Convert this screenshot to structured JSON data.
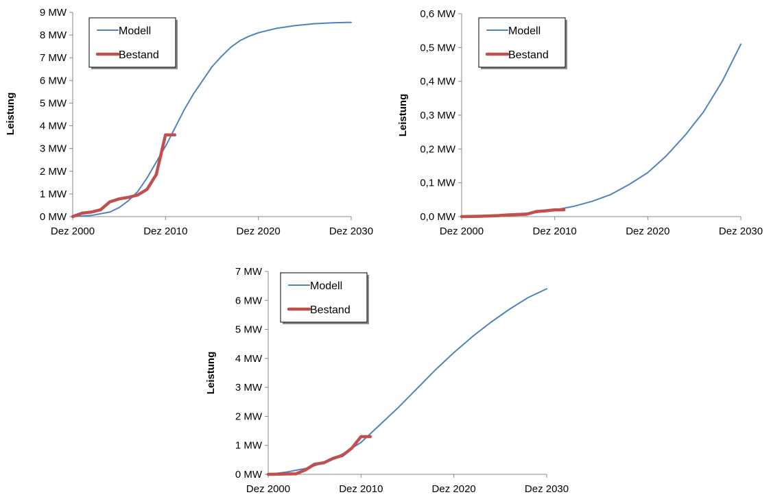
{
  "chart_data": [
    {
      "type": "line",
      "ylabel": "Leistung",
      "xlabel": "",
      "x_ticks": [
        "Dez 2000",
        "Dez 2010",
        "Dez 2020",
        "Dez 2030"
      ],
      "xlim": [
        2000,
        2030
      ],
      "y_ticks": [
        "0 MW",
        "1 MW",
        "2 MW",
        "3 MW",
        "4 MW",
        "5 MW",
        "6 MW",
        "7 MW",
        "8 MW",
        "9 MW"
      ],
      "ylim": [
        0,
        9
      ],
      "legend_position": "top-left",
      "series": [
        {
          "name": "Modell",
          "color": "#4f81bd",
          "x": [
            2000,
            2002,
            2004,
            2005,
            2006,
            2007,
            2008,
            2009,
            2010,
            2011,
            2012,
            2013,
            2014,
            2015,
            2016,
            2017,
            2018,
            2019,
            2020,
            2022,
            2024,
            2026,
            2028,
            2030
          ],
          "y": [
            0.0,
            0.05,
            0.2,
            0.4,
            0.7,
            1.1,
            1.7,
            2.4,
            3.1,
            3.9,
            4.7,
            5.4,
            6.0,
            6.6,
            7.05,
            7.45,
            7.75,
            7.95,
            8.1,
            8.3,
            8.42,
            8.5,
            8.54,
            8.56
          ]
        },
        {
          "name": "Bestand",
          "color": "#c0504d",
          "x": [
            2000,
            2001,
            2002,
            2003,
            2004,
            2005,
            2006,
            2007,
            2008,
            2009,
            2010,
            2011
          ],
          "y": [
            0.0,
            0.15,
            0.2,
            0.3,
            0.65,
            0.78,
            0.85,
            0.95,
            1.2,
            1.85,
            3.6,
            3.6
          ]
        }
      ]
    },
    {
      "type": "line",
      "ylabel": "Leistung",
      "xlabel": "",
      "x_ticks": [
        "Dez 2000",
        "Dez 2010",
        "Dez 2020",
        "Dez 2030"
      ],
      "xlim": [
        2000,
        2030
      ],
      "y_ticks": [
        "0,0 MW",
        "0,1 MW",
        "0,2 MW",
        "0,3 MW",
        "0,4 MW",
        "0,5 MW",
        "0,6 MW"
      ],
      "ylim": [
        0,
        0.6
      ],
      "legend_position": "top-left",
      "series": [
        {
          "name": "Modell",
          "color": "#4f81bd",
          "x": [
            2000,
            2004,
            2008,
            2010,
            2012,
            2014,
            2016,
            2018,
            2020,
            2022,
            2024,
            2026,
            2028,
            2030
          ],
          "y": [
            0.0,
            0.005,
            0.012,
            0.02,
            0.03,
            0.045,
            0.065,
            0.095,
            0.13,
            0.18,
            0.24,
            0.31,
            0.4,
            0.51
          ]
        },
        {
          "name": "Bestand",
          "color": "#c0504d",
          "x": [
            2000,
            2002,
            2003,
            2004,
            2005,
            2006,
            2007,
            2008,
            2009,
            2010,
            2011
          ],
          "y": [
            0.0,
            0.001,
            0.002,
            0.003,
            0.005,
            0.006,
            0.007,
            0.015,
            0.017,
            0.02,
            0.02
          ]
        }
      ]
    },
    {
      "type": "line",
      "ylabel": "Leistung",
      "xlabel": "",
      "x_ticks": [
        "Dez 2000",
        "Dez 2010",
        "Dez 2020",
        "Dez 2030"
      ],
      "xlim": [
        2000,
        2030
      ],
      "y_ticks": [
        "0 MW",
        "1 MW",
        "2 MW",
        "3 MW",
        "4 MW",
        "5 MW",
        "6 MW",
        "7 MW"
      ],
      "ylim": [
        0,
        7
      ],
      "legend_position": "top-left",
      "series": [
        {
          "name": "Modell",
          "color": "#4f81bd",
          "x": [
            2000,
            2002,
            2004,
            2006,
            2008,
            2010,
            2012,
            2014,
            2016,
            2018,
            2020,
            2022,
            2024,
            2026,
            2028,
            2030
          ],
          "y": [
            0.0,
            0.08,
            0.2,
            0.4,
            0.7,
            1.1,
            1.7,
            2.3,
            2.95,
            3.6,
            4.2,
            4.75,
            5.25,
            5.7,
            6.1,
            6.4
          ]
        },
        {
          "name": "Bestand",
          "color": "#c0504d",
          "x": [
            2000,
            2003,
            2004,
            2005,
            2006,
            2007,
            2008,
            2009,
            2010,
            2011
          ],
          "y": [
            0.0,
            0.02,
            0.15,
            0.35,
            0.4,
            0.55,
            0.65,
            0.9,
            1.3,
            1.3
          ]
        }
      ]
    }
  ]
}
